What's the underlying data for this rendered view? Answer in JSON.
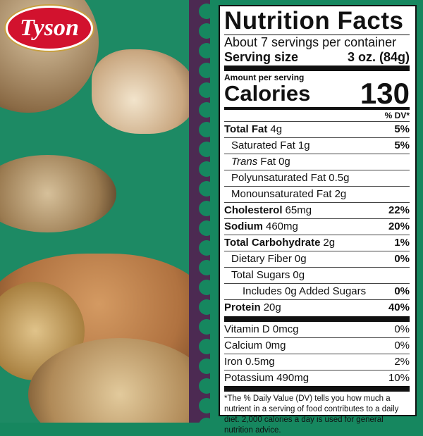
{
  "brand": {
    "logo_text": "Tyson",
    "color": "#d2122e"
  },
  "colors": {
    "background_green": "#16875f",
    "strip_purple": "#4c2a52"
  },
  "nutrition": {
    "title": "Nutrition Facts",
    "servings": "About 7 servings per container",
    "serving_size_label": "Serving size",
    "serving_size_value": "3 oz. (84g)",
    "amount_per_serving": "Amount per serving",
    "calories_label": "Calories",
    "calories_value": "130",
    "dv_header": "% DV*",
    "rows": [
      {
        "name": "Total Fat",
        "amount": "4g",
        "dv": "5%",
        "bold": true,
        "indent": 0
      },
      {
        "name": "Saturated Fat",
        "amount": "1g",
        "dv": "5%",
        "bold": false,
        "indent": 1
      },
      {
        "name": "Trans",
        "name_suffix": " Fat",
        "amount": "0g",
        "dv": "",
        "italic": true,
        "indent": 1
      },
      {
        "name": "Polyunsaturated Fat",
        "amount": "0.5g",
        "dv": "",
        "indent": 1
      },
      {
        "name": "Monounsaturated Fat",
        "amount": "2g",
        "dv": "",
        "indent": 1
      },
      {
        "name": "Cholesterol",
        "amount": "65mg",
        "dv": "22%",
        "bold": true,
        "indent": 0
      },
      {
        "name": "Sodium",
        "amount": "460mg",
        "dv": "20%",
        "bold": true,
        "indent": 0
      },
      {
        "name": "Total Carbohydrate",
        "amount": "2g",
        "dv": "1%",
        "bold": true,
        "indent": 0
      },
      {
        "name": "Dietary Fiber",
        "amount": "0g",
        "dv": "0%",
        "indent": 1
      },
      {
        "name": "Total Sugars",
        "amount": "0g",
        "dv": "",
        "indent": 1
      },
      {
        "name": "Includes 0g Added Sugars",
        "amount": "",
        "dv": "0%",
        "indent": 2
      },
      {
        "name": "Protein",
        "amount": "20g",
        "dv": "40%",
        "bold": true,
        "indent": 0
      }
    ],
    "micros": [
      {
        "name": "Vitamin D 0mcg",
        "dv": "0%"
      },
      {
        "name": "Calcium 0mg",
        "dv": "0%"
      },
      {
        "name": "Iron 0.5mg",
        "dv": "2%"
      },
      {
        "name": "Potassium 490mg",
        "dv": "10%"
      }
    ],
    "footnote": "*The % Daily Value (DV) tells you how much a nutrient in a serving of food contributes to a daily diet. 2,000 calories a day is used for general nutrition advice."
  }
}
